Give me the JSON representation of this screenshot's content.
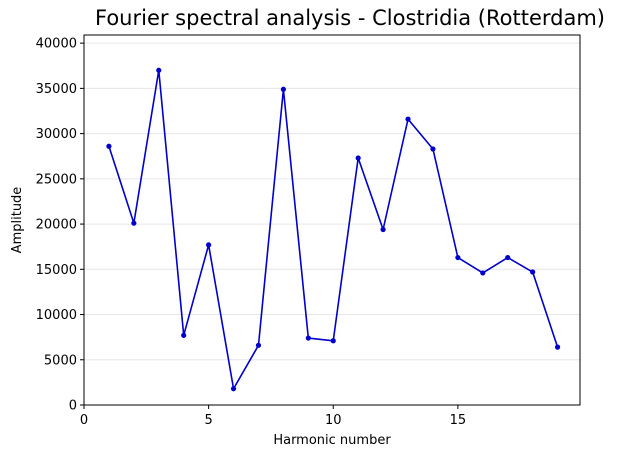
{
  "chart_data": {
    "type": "line",
    "title": "Fourier spectral analysis - Clostridia (Rotterdam)",
    "xlabel": "Harmonic number",
    "ylabel": "Amplitude",
    "xlim": [
      0,
      19.9
    ],
    "ylim": [
      0,
      40900
    ],
    "x_ticks": [
      0,
      5,
      10,
      15
    ],
    "y_ticks": [
      0,
      5000,
      10000,
      15000,
      20000,
      25000,
      30000,
      35000,
      40000
    ],
    "grid": "horizontal",
    "series": [
      {
        "color": "#0000cc",
        "x": [
          1,
          2,
          3,
          4,
          5,
          6,
          7,
          8,
          9,
          10,
          11,
          12,
          13,
          14,
          15,
          16,
          17,
          18,
          19
        ],
        "y": [
          28600,
          20100,
          37000,
          7700,
          17700,
          1800,
          6600,
          34900,
          7400,
          7100,
          27300,
          19400,
          31600,
          28300,
          16300,
          14600,
          16300,
          14700,
          6400
        ]
      }
    ]
  }
}
